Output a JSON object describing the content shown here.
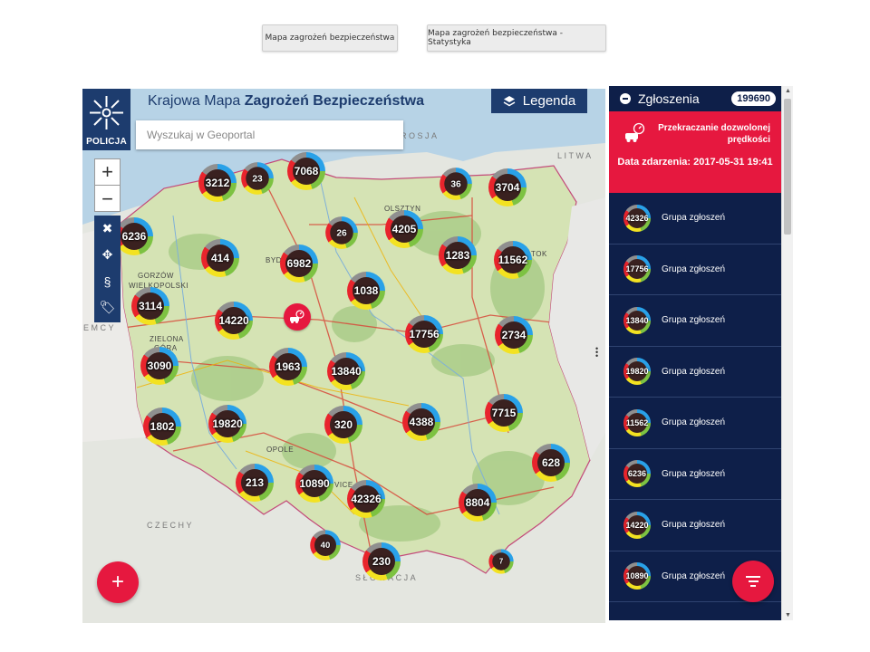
{
  "top_buttons": {
    "map": "Mapa zagrożeń bezpieczeństwa",
    "stats": "Mapa zagrożeń bezpieczeństwa - Statystyka"
  },
  "header": {
    "logo_text": "POLICJA",
    "title_light": "Krajowa Mapa",
    "title_bold": "Zagrożeń Bezpieczeństwa",
    "search_placeholder": "Wyszukaj w Geoportal",
    "legend_label": "Legenda"
  },
  "map_controls": {
    "zoom_in": "+",
    "zoom_out": "−"
  },
  "countries": {
    "russia": "ROSJA",
    "lithuania": "LITWA",
    "germany": "EMCY",
    "czechia": "CZECHY",
    "slovakia": "SŁOWACJA"
  },
  "cities": {
    "olsztyn": "OLSZTYN",
    "bydgoszcz": "BYD",
    "gorzow1": "GORZÓW",
    "gorzow2": "WIELKOPOLSKI",
    "zielona1": "ZIELONA",
    "zielona2": "GÓRA",
    "opole": "OPOLE",
    "katowice": "VICE",
    "bialystok": "TOK"
  },
  "clusters": [
    "3212",
    "23",
    "7068",
    "36",
    "3704",
    "6236",
    "26",
    "4205",
    "414",
    "6982",
    "1283",
    "11562",
    "1038",
    "3114",
    "14220",
    "17756",
    "2734",
    "3090",
    "1963",
    "13840",
    "1802",
    "19820",
    "320",
    "4388",
    "7715",
    "628",
    "213",
    "10890",
    "42326",
    "8804",
    "40",
    "230",
    "7"
  ],
  "panel": {
    "title": "Zgłoszenia",
    "count": "199690",
    "alert_type": "Przekraczanie dozwolonej prędkości",
    "alert_date": "Data zdarzenia: 2017-05-31 19:41",
    "items": [
      {
        "count": "42326",
        "label": "Grupa zgłoszeń"
      },
      {
        "count": "17756",
        "label": "Grupa zgłoszeń"
      },
      {
        "count": "13840",
        "label": "Grupa zgłoszeń"
      },
      {
        "count": "19820",
        "label": "Grupa zgłoszeń"
      },
      {
        "count": "11562",
        "label": "Grupa zgłoszeń"
      },
      {
        "count": "6236",
        "label": "Grupa zgłoszeń"
      },
      {
        "count": "14220",
        "label": "Grupa zgłoszeń"
      },
      {
        "count": "10890",
        "label": "Grupa zgłoszeń"
      }
    ]
  },
  "colors": {
    "navy": "#1d3c6e",
    "panel": "#0e1f49",
    "accent_red": "#e6183f"
  }
}
